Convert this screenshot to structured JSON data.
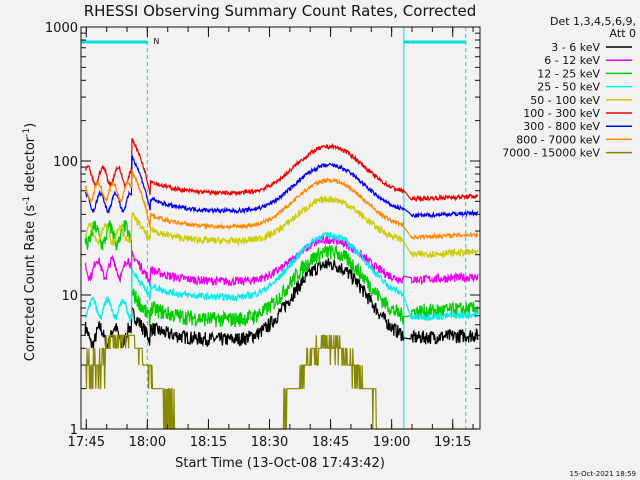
{
  "chart_data": {
    "type": "line",
    "title": "RHESSI Observing Summary Count Rates, Corrected",
    "xlabel": "Start Time (13-Oct-08 17:43:42)",
    "ylabel_main": "Corrected Count Rate (s",
    "ylabel_sup1": "-1",
    "ylabel_mid": " detector",
    "ylabel_sup2": "-1",
    "ylabel_end": ")",
    "yscale": "log",
    "ylim": [
      1,
      1000
    ],
    "xlim_minutes": [
      0,
      98
    ],
    "x_ticks": [
      {
        "label": "17:45",
        "minute": 1.3
      },
      {
        "label": "18:00",
        "minute": 16.3
      },
      {
        "label": "18:15",
        "minute": 31.3
      },
      {
        "label": "18:30",
        "minute": 46.3
      },
      {
        "label": "18:45",
        "minute": 61.3
      },
      {
        "label": "19:00",
        "minute": 76.3
      },
      {
        "label": "19:15",
        "minute": 91.3
      }
    ],
    "y_ticks": [
      {
        "label": "1",
        "value": 1
      },
      {
        "label": "10",
        "value": 10
      },
      {
        "label": "100",
        "value": 100
      },
      {
        "label": "1000",
        "value": 1000
      }
    ],
    "legend_header_1": "Det 1,3,4,5,6,9,",
    "legend_header_2": "Att 0",
    "series": [
      {
        "name": "3 - 6 keV",
        "color": "#000000",
        "pre": 5.0,
        "base": 4.6,
        "peak": 17,
        "jitter": 0.04,
        "tail": 4.8
      },
      {
        "name": "6 - 12 keV",
        "color": "#ee00ee",
        "pre": 16,
        "base": 12.5,
        "peak": 26,
        "jitter": 0.025,
        "tail": 13
      },
      {
        "name": "12 - 25 keV",
        "color": "#00cc00",
        "pre": 28,
        "base": 6.5,
        "peak": 21,
        "jitter": 0.045,
        "tail": 7.5
      },
      {
        "name": "25 - 50 keV",
        "color": "#00eeee",
        "pre": 8,
        "base": 9.5,
        "peak": 28,
        "jitter": 0.02,
        "tail": 6.8
      },
      {
        "name": "50 - 100 keV",
        "color": "#cccc00",
        "pre": 29,
        "base": 25,
        "peak": 52,
        "jitter": 0.02,
        "tail": 20
      },
      {
        "name": "100 - 300 keV",
        "color": "#ee0000",
        "pre": 78,
        "base": 57,
        "peak": 128,
        "jitter": 0.012,
        "tail": 52
      },
      {
        "name": "300 - 800 keV",
        "color": "#0000ee",
        "pre": 50,
        "base": 42,
        "peak": 93,
        "jitter": 0.012,
        "tail": 39
      },
      {
        "name": "800 - 7000 keV",
        "color": "#ff8800",
        "pre": 60,
        "base": 32,
        "peak": 72,
        "jitter": 0.012,
        "tail": 27
      },
      {
        "name": "7000 - 15000 keV",
        "color": "#888800",
        "pre": 3.0,
        "base": 1.0,
        "peak": 5,
        "jitter": 0.0,
        "tail": 1.0
      }
    ],
    "night_markers_minutes": [
      0,
      16.3,
      79.3,
      94.5
    ],
    "night_label": "N",
    "timestamp": "15-Oct-2021 18:59"
  }
}
